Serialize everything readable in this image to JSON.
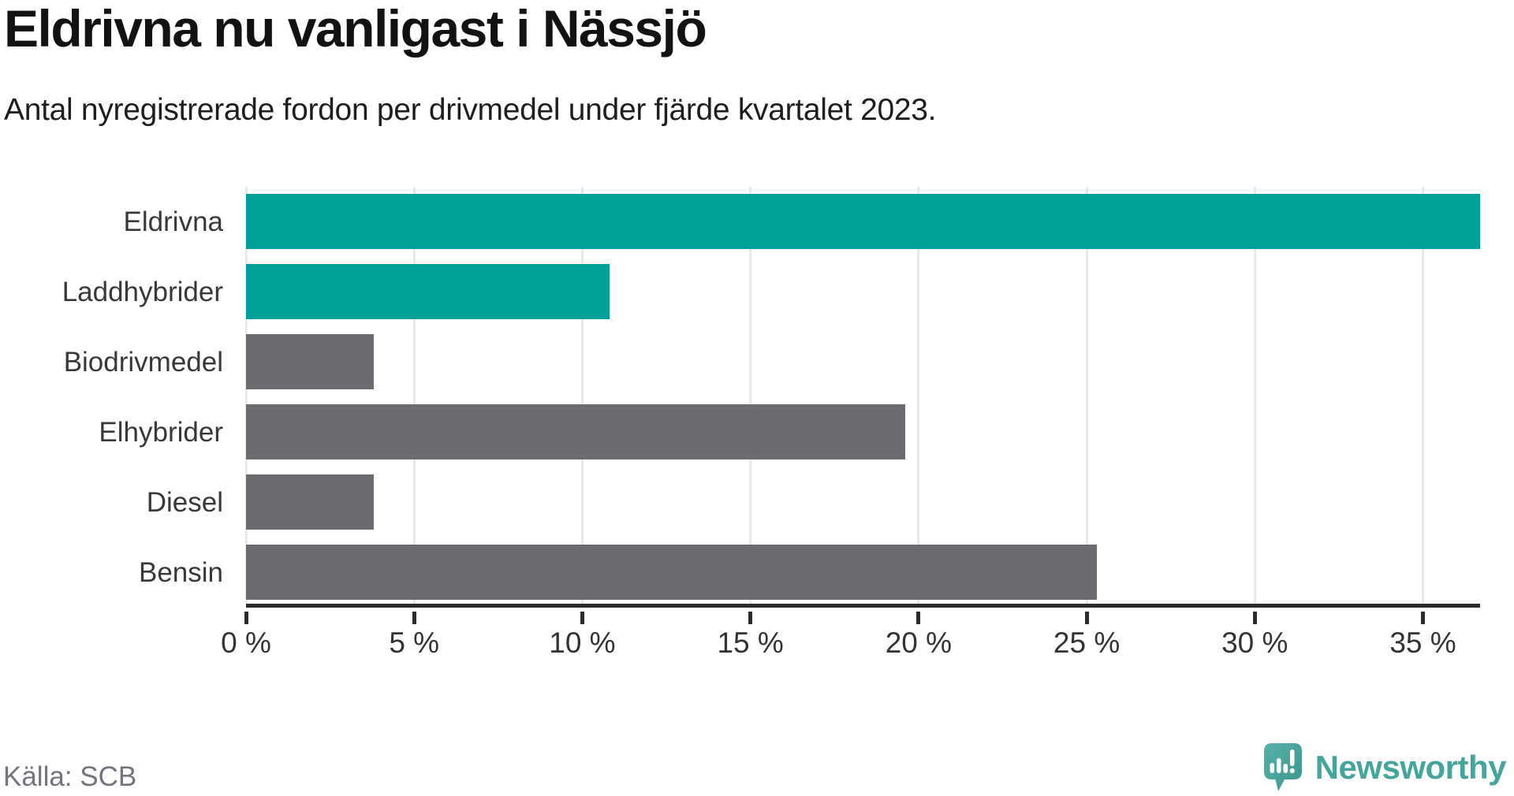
{
  "header": {
    "title": "Eldrivna nu vanligast i Nässjö",
    "subtitle": "Antal nyregistrerade fordon per drivmedel under fjärde kvartalet 2023."
  },
  "footer": {
    "source": "Källa: SCB",
    "logo_text": "Newsworthy",
    "logo_icon": "newsworthy-speech-bubble-chart-icon"
  },
  "colors": {
    "highlight_teal": "#00a09a",
    "neutral_gray": "#6c6b70",
    "gridline": "#e8e8e8",
    "axis_line": "#2b2b2b",
    "tick_label": "#333333",
    "category_label": "#383838",
    "source_text": "#74737e",
    "logo_teal": "#45a49c"
  },
  "chart_data": {
    "type": "bar",
    "orientation": "horizontal",
    "title": "Eldrivna nu vanligast i Nässjö",
    "subtitle": "Antal nyregistrerade fordon per drivmedel under fjärde kvartalet 2023.",
    "categories": [
      "Eldrivna",
      "Laddhybrider",
      "Biodrivmedel",
      "Elhybrider",
      "Diesel",
      "Bensin"
    ],
    "values": [
      36.7,
      10.8,
      3.8,
      19.6,
      3.8,
      25.3
    ],
    "unit": "%",
    "bar_colors": [
      "#00a09a",
      "#00a09a",
      "#6c6b70",
      "#6c6b70",
      "#6c6b70",
      "#6c6b70"
    ],
    "xlabel": "",
    "ylabel": "",
    "xlim": [
      0,
      36.7
    ],
    "x_ticks": [
      0,
      5,
      10,
      15,
      20,
      25,
      30,
      35
    ],
    "x_tick_labels": [
      "0 %",
      "5 %",
      "10 %",
      "15 %",
      "20 %",
      "25 %",
      "30 %",
      "35 %"
    ],
    "grid": "vertical",
    "legend": "none",
    "source": "Källa: SCB"
  }
}
